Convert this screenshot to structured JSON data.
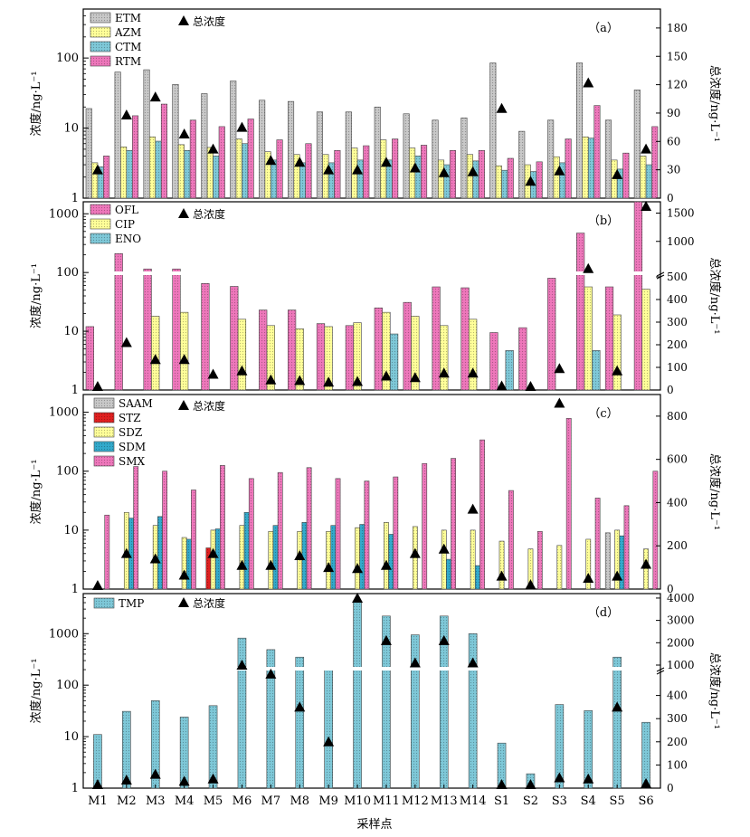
{
  "chart_data": [
    {
      "panel": "（a）",
      "type": "bar",
      "ylabel": "浓度/ng·L⁻¹",
      "y2label": "总浓度/ng·L⁻¹",
      "yscale": "log",
      "ylim": [
        1,
        500
      ],
      "yticks": [
        1,
        10,
        100
      ],
      "y2lim": [
        0,
        200
      ],
      "y2ticks": [
        0,
        30,
        60,
        90,
        120,
        150,
        180
      ],
      "categories": [
        "M1",
        "M2",
        "M3",
        "M4",
        "M5",
        "M6",
        "M7",
        "M8",
        "M9",
        "M10",
        "M11",
        "M12",
        "M13",
        "M14",
        "S1",
        "S2",
        "S3",
        "S4",
        "S5",
        "S6"
      ],
      "series": [
        {
          "name": "ETM",
          "color": "#c8c8c8",
          "values": [
            19,
            63,
            68,
            42,
            31,
            47,
            25,
            24,
            17,
            17,
            20,
            16,
            13,
            14,
            85,
            9,
            13,
            85,
            13,
            35
          ]
        },
        {
          "name": "AZM",
          "color": "#ffff99",
          "values": [
            3.2,
            5.4,
            7.5,
            5.8,
            5.3,
            7,
            4.6,
            4.2,
            4.2,
            5.2,
            6.8,
            5.2,
            3.5,
            4.2,
            2.9,
            3,
            3.9,
            7.5,
            3.5,
            4
          ]
        },
        {
          "name": "CTM",
          "color": "#7ec8d8",
          "values": [
            2.8,
            4.8,
            6.5,
            4.8,
            4,
            6,
            3.5,
            3.2,
            3.2,
            3.5,
            3.5,
            4,
            3,
            3.4,
            2.5,
            2.4,
            3.2,
            7.2,
            2.6,
            3
          ]
        },
        {
          "name": "RTM",
          "color": "#ee77bb",
          "values": [
            4,
            15,
            22,
            13,
            10.5,
            13.5,
            6.8,
            6,
            4.8,
            5.6,
            7,
            5.7,
            4.8,
            4.8,
            3.7,
            3.3,
            7,
            21,
            4.4,
            10.5
          ]
        }
      ],
      "total_label": "总浓度",
      "total": [
        30,
        88,
        107,
        68,
        52,
        75,
        40,
        38,
        30,
        30,
        38,
        32,
        27,
        28,
        95,
        18,
        29,
        122,
        25,
        52
      ]
    },
    {
      "panel": "（b）",
      "type": "bar",
      "ylabel": "浓度/ng·L⁻¹",
      "y2label": "总浓度/ng·L⁻¹",
      "yscale": "log",
      "ylim": [
        1,
        1600
      ],
      "yticks": [
        1,
        10,
        100,
        1000
      ],
      "y2_broken_axis": true,
      "y2ticks": [
        0,
        100,
        200,
        300,
        400,
        500,
        1000,
        1500
      ],
      "categories": [
        "M1",
        "M2",
        "M3",
        "M4",
        "M5",
        "M6",
        "M7",
        "M8",
        "M9",
        "M10",
        "M11",
        "M12",
        "M13",
        "M14",
        "S1",
        "S2",
        "S3",
        "S4",
        "S5",
        "S6"
      ],
      "series": [
        {
          "name": "OFL",
          "color": "#ee77bb",
          "values": [
            12,
            210,
            115,
            115,
            65,
            58,
            23,
            23,
            13.5,
            12.5,
            25,
            31,
            57,
            55,
            9.5,
            11.5,
            80,
            470,
            57,
            1600
          ]
        },
        {
          "name": "CIP",
          "color": "#ffff99",
          "values": [
            null,
            null,
            18,
            21,
            null,
            16,
            12.5,
            11,
            12,
            14,
            21,
            18,
            12.5,
            16,
            null,
            null,
            null,
            57,
            19,
            52
          ]
        },
        {
          "name": "ENO",
          "color": "#7ec8d8",
          "values": [
            null,
            null,
            null,
            null,
            null,
            null,
            null,
            null,
            null,
            null,
            9,
            null,
            null,
            null,
            4.7,
            null,
            null,
            4.7,
            null,
            null
          ]
        }
      ],
      "total_label": "总浓度",
      "total": [
        15,
        210,
        135,
        135,
        70,
        85,
        45,
        42,
        35,
        38,
        62,
        55,
        75,
        75,
        18,
        15,
        95,
        520,
        85,
        1700
      ]
    },
    {
      "panel": "（c）",
      "type": "bar",
      "ylabel": "浓度/ng·L⁻¹",
      "y2label": "总浓度/ng·L⁻¹",
      "yscale": "log",
      "ylim": [
        1,
        2000
      ],
      "yticks": [
        1,
        10,
        100,
        1000
      ],
      "y2lim": [
        0,
        900
      ],
      "y2ticks": [
        0,
        200,
        400,
        600,
        800
      ],
      "categories": [
        "M1",
        "M2",
        "M3",
        "M4",
        "M5",
        "M6",
        "M7",
        "M8",
        "M9",
        "M10",
        "M11",
        "M12",
        "M13",
        "M14",
        "S1",
        "S2",
        "S3",
        "S4",
        "S5",
        "S6"
      ],
      "series": [
        {
          "name": "SAAM",
          "color": "#c8c8c8",
          "values": [
            null,
            null,
            null,
            null,
            null,
            null,
            null,
            null,
            null,
            null,
            null,
            null,
            null,
            null,
            null,
            null,
            null,
            null,
            9,
            null
          ]
        },
        {
          "name": "STZ",
          "color": "#e02020",
          "values": [
            null,
            null,
            null,
            null,
            5,
            null,
            null,
            null,
            null,
            null,
            null,
            null,
            null,
            null,
            null,
            null,
            null,
            null,
            null,
            null
          ]
        },
        {
          "name": "SDZ",
          "color": "#ffff99",
          "values": [
            null,
            20,
            12,
            7.5,
            10,
            12,
            9.5,
            9.5,
            9.5,
            11,
            13.5,
            11.5,
            10,
            10,
            6.5,
            4.8,
            5.5,
            7,
            10,
            4.8
          ]
        },
        {
          "name": "SDM",
          "color": "#33aacc",
          "values": [
            null,
            16,
            17,
            7,
            10.5,
            20,
            12,
            13.5,
            12,
            12.5,
            8.5,
            null,
            3.2,
            2.5,
            null,
            null,
            null,
            null,
            8,
            null
          ]
        },
        {
          "name": "SMX",
          "color": "#ee77bb",
          "values": [
            18,
            120,
            100,
            48,
            125,
            75,
            95,
            115,
            75,
            68,
            80,
            135,
            165,
            340,
            47,
            9.5,
            790,
            35,
            26,
            100
          ]
        }
      ],
      "total_label": "总浓度",
      "total": [
        15,
        165,
        140,
        65,
        165,
        110,
        110,
        155,
        100,
        95,
        110,
        165,
        185,
        370,
        60,
        20,
        860,
        50,
        60,
        115
      ]
    },
    {
      "panel": "（d）",
      "type": "bar",
      "xlabel": "采样点",
      "ylabel": "浓度/ng·L⁻¹",
      "y2label": "总浓度/ng·L⁻¹",
      "yscale": "log",
      "ylim": [
        1,
        6000
      ],
      "yticks": [
        1,
        10,
        100,
        1000
      ],
      "y2_broken_axis": true,
      "y2ticks": [
        0,
        100,
        200,
        300,
        400,
        1000,
        2000,
        3000,
        4000
      ],
      "categories": [
        "M1",
        "M2",
        "M3",
        "M4",
        "M5",
        "M6",
        "M7",
        "M8",
        "M9",
        "M10",
        "M11",
        "M12",
        "M13",
        "M14",
        "S1",
        "S2",
        "S3",
        "S4",
        "S5",
        "S6"
      ],
      "series": [
        {
          "name": "TMP",
          "color": "#7ec8d8",
          "values": [
            11,
            31,
            50,
            24,
            40,
            820,
            490,
            350,
            195,
            4200,
            2200,
            950,
            2200,
            1000,
            7.5,
            1.9,
            42,
            32,
            350,
            19
          ]
        }
      ],
      "total_label": "总浓度",
      "total": [
        10,
        35,
        60,
        30,
        40,
        1000,
        600,
        350,
        200,
        4000,
        2100,
        1100,
        2100,
        1100,
        5,
        5,
        45,
        40,
        350,
        20
      ]
    }
  ]
}
